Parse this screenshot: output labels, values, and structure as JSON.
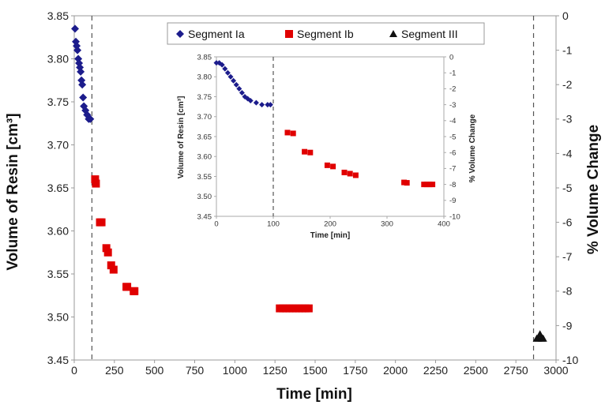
{
  "chart_data": [
    {
      "type": "scatter",
      "xlabel": "Time [min]",
      "ylabel": "Volume of Resin [cm³]",
      "y2label": "% Volume Change",
      "xlim": [
        0,
        3000
      ],
      "ylim": [
        3.45,
        3.85
      ],
      "y2lim": [
        -10,
        0
      ],
      "x_ticks": [
        0,
        250,
        500,
        750,
        1000,
        1250,
        1500,
        1750,
        2000,
        2250,
        2500,
        2750,
        3000
      ],
      "y_ticks": [
        3.45,
        3.5,
        3.55,
        3.6,
        3.65,
        3.7,
        3.75,
        3.8,
        3.85
      ],
      "y2_ticks": [
        0,
        -1,
        -2,
        -3,
        -4,
        -5,
        -6,
        -7,
        -8,
        -9,
        -10
      ],
      "vlines": [
        110,
        2860
      ],
      "legend": {
        "placement": "top-center"
      },
      "series": [
        {
          "name": "Segment Ia",
          "marker": "diamond",
          "color": "#1c1c8c",
          "x": [
            5,
            10,
            15,
            20,
            25,
            30,
            35,
            40,
            45,
            50,
            55,
            60,
            70,
            80,
            90,
            100
          ],
          "y": [
            3.835,
            3.82,
            3.815,
            3.81,
            3.8,
            3.795,
            3.79,
            3.785,
            3.775,
            3.77,
            3.755,
            3.745,
            3.74,
            3.735,
            3.73,
            3.73
          ]
        },
        {
          "name": "Segment Ib",
          "marker": "square",
          "color": "#e00000",
          "x": [
            130,
            135,
            160,
            170,
            200,
            210,
            230,
            245,
            325,
            330,
            370,
            375,
            1280,
            1300,
            1320,
            1340,
            1360,
            1380,
            1400,
            1420,
            1440,
            1460
          ],
          "y": [
            3.66,
            3.655,
            3.61,
            3.61,
            3.58,
            3.575,
            3.56,
            3.555,
            3.535,
            3.535,
            3.53,
            3.53,
            3.51,
            3.51,
            3.51,
            3.51,
            3.51,
            3.51,
            3.51,
            3.51,
            3.51,
            3.51
          ]
        },
        {
          "name": "Segment III",
          "marker": "triangle",
          "color": "#111111",
          "x": [
            2880,
            2890,
            2900,
            2910,
            2920
          ],
          "y": [
            3.475,
            3.475,
            3.48,
            3.475,
            3.475
          ]
        }
      ]
    },
    {
      "type": "scatter",
      "xlabel": "Time [min]",
      "ylabel": "Volume of Resin [cm³]",
      "y2label": "% Volume Change",
      "xlim": [
        0,
        400
      ],
      "ylim": [
        3.45,
        3.85
      ],
      "y2lim": [
        -10,
        0
      ],
      "x_ticks": [
        0,
        100,
        200,
        300,
        400
      ],
      "y_ticks": [
        3.45,
        3.5,
        3.55,
        3.6,
        3.65,
        3.7,
        3.75,
        3.8,
        3.85
      ],
      "y2_ticks": [
        0,
        -1,
        -2,
        -3,
        -4,
        -5,
        -6,
        -7,
        -8,
        -9,
        -10
      ],
      "vlines": [
        100
      ],
      "series": [
        {
          "name": "Segment Ia",
          "marker": "diamond",
          "color": "#1c1c8c",
          "x": [
            0,
            5,
            10,
            15,
            20,
            25,
            30,
            35,
            40,
            45,
            50,
            55,
            60,
            70,
            80,
            90,
            95
          ],
          "y": [
            3.835,
            3.835,
            3.83,
            3.82,
            3.81,
            3.8,
            3.79,
            3.78,
            3.77,
            3.76,
            3.75,
            3.745,
            3.74,
            3.735,
            3.73,
            3.73,
            3.73
          ]
        },
        {
          "name": "Segment Ib",
          "marker": "square",
          "color": "#e00000",
          "x": [
            125,
            135,
            155,
            165,
            195,
            205,
            225,
            235,
            245,
            330,
            335,
            365,
            370,
            375,
            380
          ],
          "y": [
            3.66,
            3.658,
            3.612,
            3.61,
            3.578,
            3.575,
            3.56,
            3.557,
            3.553,
            3.535,
            3.534,
            3.53,
            3.53,
            3.53,
            3.53
          ]
        }
      ]
    }
  ]
}
